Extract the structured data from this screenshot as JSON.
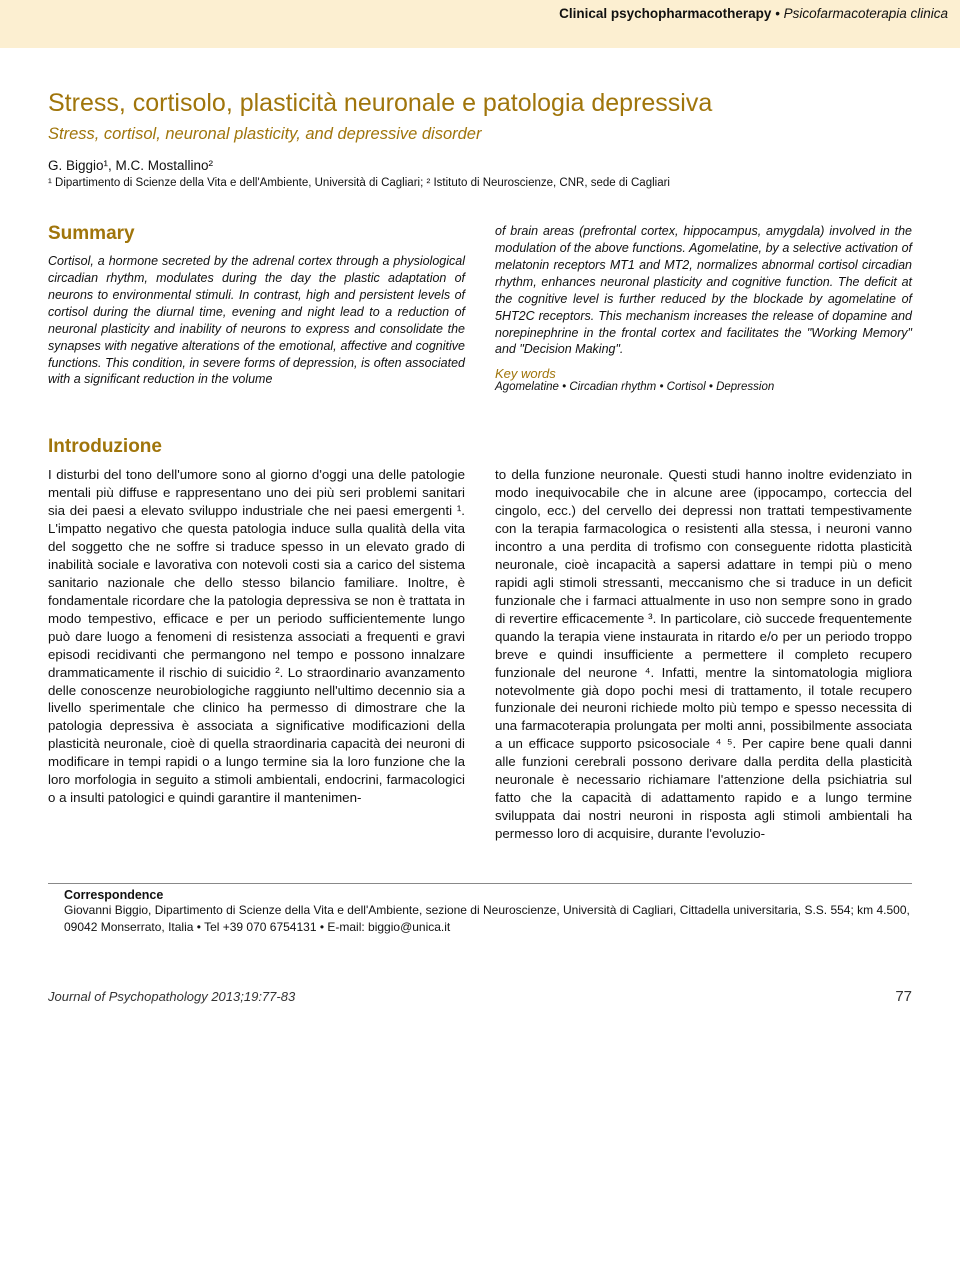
{
  "colors": {
    "band_bg": "#fcefd1",
    "accent": "#a0750b",
    "body_text": "#111111",
    "rule": "#888888",
    "page_bg": "#ffffff"
  },
  "typography": {
    "body_family": "Helvetica Neue, Helvetica, Arial, sans-serif",
    "title_it_pt": 25,
    "title_en_pt": 16.5,
    "authors_pt": 13.5,
    "affil_pt": 11.5,
    "summary_heading_pt": 19,
    "summary_text_pt": 12.5,
    "section_heading_pt": 19,
    "body_text_pt": 13.3,
    "corr_heading_pt": 12.5,
    "corr_text_pt": 12,
    "footer_pt": 13
  },
  "header": {
    "section_strong": "Clinical psychopharmacotherapy",
    "section_sep": " • ",
    "section_em": "Psicofarmacoterapia clinica"
  },
  "title": {
    "it": "Stress, cortisolo, plasticità neuronale e patologia depressiva",
    "en": "Stress, cortisol, neuronal plasticity, and depressive disorder"
  },
  "authors": "G. Biggio¹, M.C. Mostallino²",
  "affiliations": "¹ Dipartimento di Scienze della Vita e dell'Ambiente, Università di Cagliari; ² Istituto di Neuroscienze, CNR, sede di Cagliari",
  "summary": {
    "heading": "Summary",
    "left": "Cortisol, a hormone secreted by the adrenal cortex through a physiological circadian rhythm, modulates during the day the plastic adaptation of neurons to environmental stimuli. In contrast, high and persistent levels of cortisol during the diurnal time, evening and night lead to a reduction of neuronal plasticity and inability of neurons to express and consolidate the synapses with negative alterations of the emotional, affective and cognitive functions. This condition, in severe forms of depression, is often associated with a significant reduction in the volume",
    "right": "of brain areas (prefrontal cortex, hippocampus, amygdala) involved in the modulation of the above functions. Agomelatine, by a selective activation of melatonin receptors MT1 and MT2, normalizes abnormal cortisol circadian rhythm, enhances neuronal plasticity and cognitive function. The deficit at the cognitive level is further reduced by the blockade by agomelatine of 5HT2C receptors. This mechanism increases the release of dopamine and norepinephrine in the frontal cortex and facilitates the \"Working Memory\" and \"Decision Making\".",
    "keywords_label": "Key words",
    "keywords": "Agomelatine • Circadian rhythm • Cortisol • Depression"
  },
  "intro": {
    "heading": "Introduzione",
    "left": "I disturbi del tono dell'umore sono al giorno d'oggi una delle patologie mentali più diffuse e rappresentano uno dei più seri problemi sanitari sia dei paesi a elevato sviluppo industriale che nei paesi emergenti ¹.\nL'impatto negativo che questa patologia induce sulla qualità della vita del soggetto che ne soffre si traduce spesso in un elevato grado di inabilità sociale e lavorativa con notevoli costi sia a carico del sistema sanitario nazionale che dello stesso bilancio familiare. Inoltre, è fondamentale ricordare che la patologia depressiva se non è trattata in modo tempestivo, efficace e per un periodo sufficientemente lungo può dare luogo a fenomeni di resistenza associati a frequenti e gravi episodi recidivanti che permangono nel tempo e possono innalzare drammaticamente il rischio di suicidio ².\nLo straordinario avanzamento delle conoscenze neurobiologiche raggiunto nell'ultimo decennio sia a livello sperimentale che clinico ha permesso di dimostrare che la patologia depressiva è associata a significative modificazioni della plasticità neuronale, cioè di quella straordinaria capacità dei neuroni di modificare in tempi rapidi o a lungo termine sia la loro funzione che la loro morfologia in seguito a stimoli ambientali, endocrini, farmacologici o a insulti patologici e quindi garantire il mantenimen-",
    "right": "to della funzione neuronale. Questi studi hanno inoltre evidenziato in modo inequivocabile che in alcune aree (ippocampo, corteccia del cingolo, ecc.) del cervello dei depressi non trattati tempestivamente con la terapia farmacologica o resistenti alla stessa, i neuroni vanno incontro a una perdita di trofismo con conseguente ridotta plasticità neuronale, cioè incapacità a sapersi adattare in tempi più o meno rapidi agli stimoli stressanti, meccanismo che si traduce in un deficit funzionale che i farmaci attualmente in uso non sempre sono in grado di revertire efficacemente ³. In particolare, ciò succede frequentemente quando la terapia viene instaurata in ritardo e/o per un periodo troppo breve e quindi insufficiente a permettere il completo recupero funzionale del neurone ⁴. Infatti, mentre la sintomatologia migliora notevolmente già dopo pochi mesi di trattamento, il totale recupero funzionale dei neuroni richiede molto più tempo e spesso necessita di una farmacoterapia prolungata per molti anni, possibilmente associata a un efficace supporto psicosociale ⁴ ⁵.\nPer capire bene quali danni alle funzioni cerebrali possono derivare dalla perdita della plasticità neuronale è necessario richiamare l'attenzione della psichiatria sul fatto che la capacità di adattamento rapido e a lungo termine sviluppata dai nostri neuroni in risposta agli stimoli ambientali ha permesso loro di acquisire, durante l'evoluzio-"
  },
  "correspondence": {
    "heading": "Correspondence",
    "text": "Giovanni Biggio, Dipartimento di Scienze della Vita e dell'Ambiente, sezione di Neuroscienze, Università di Cagliari, Cittadella universitaria, S.S. 554; km 4.500, 09042 Monserrato, Italia • Tel +39 070 6754131 • E-mail: biggio@unica.it"
  },
  "footer": {
    "journal": "Journal of Psychopathology 2013;19:77-83",
    "page": "77"
  }
}
